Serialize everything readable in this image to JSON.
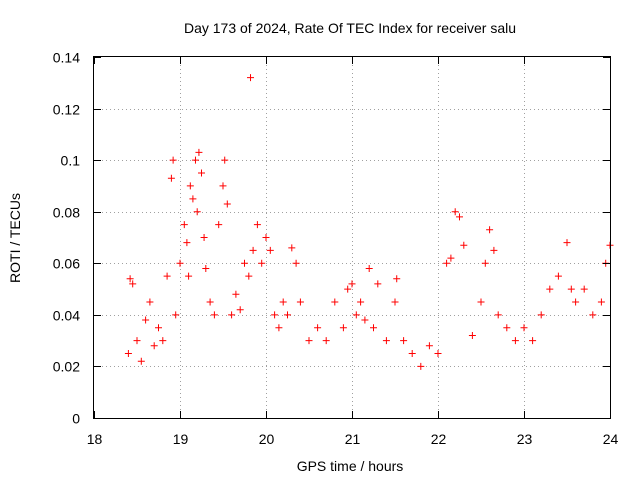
{
  "chart_data": {
    "type": "scatter",
    "title": "Day 173 of 2024, Rate Of TEC Index for receiver salu",
    "xlabel": "GPS time / hours",
    "ylabel": "ROTI / TECUs",
    "xlim": [
      18,
      24
    ],
    "ylim": [
      0,
      0.14
    ],
    "xticks": [
      "18",
      "19",
      "20",
      "21",
      "22",
      "23",
      "24"
    ],
    "yticks": [
      "0",
      "0.02",
      "0.04",
      "0.06",
      "0.08",
      "0.1",
      "0.12",
      "0.14"
    ],
    "grid": true,
    "marker": "+",
    "color": "#ff0000",
    "series": [
      {
        "name": "ROTI",
        "x": [
          18.4,
          18.42,
          18.45,
          18.5,
          18.55,
          18.6,
          18.65,
          18.7,
          18.75,
          18.8,
          18.85,
          18.9,
          18.92,
          18.95,
          19.0,
          19.05,
          19.08,
          19.1,
          19.12,
          19.15,
          19.18,
          19.2,
          19.22,
          19.25,
          19.28,
          19.3,
          19.35,
          19.4,
          19.45,
          19.5,
          19.52,
          19.55,
          19.6,
          19.65,
          19.7,
          19.75,
          19.8,
          19.82,
          19.85,
          19.9,
          19.95,
          20.0,
          20.05,
          20.1,
          20.15,
          20.2,
          20.25,
          20.3,
          20.35,
          20.4,
          20.5,
          20.6,
          20.7,
          20.8,
          20.9,
          20.95,
          21.0,
          21.05,
          21.1,
          21.15,
          21.2,
          21.25,
          21.3,
          21.4,
          21.5,
          21.52,
          21.6,
          21.7,
          21.8,
          21.9,
          22.0,
          22.1,
          22.15,
          22.2,
          22.25,
          22.3,
          22.4,
          22.5,
          22.55,
          22.6,
          22.65,
          22.7,
          22.8,
          22.9,
          23.0,
          23.1,
          23.2,
          23.3,
          23.4,
          23.5,
          23.55,
          23.6,
          23.7,
          23.8,
          23.9,
          23.95,
          24.0
        ],
        "y": [
          0.025,
          0.054,
          0.052,
          0.03,
          0.022,
          0.038,
          0.045,
          0.028,
          0.035,
          0.03,
          0.055,
          0.093,
          0.1,
          0.04,
          0.06,
          0.075,
          0.068,
          0.055,
          0.09,
          0.085,
          0.1,
          0.08,
          0.103,
          0.095,
          0.07,
          0.058,
          0.045,
          0.04,
          0.075,
          0.09,
          0.1,
          0.083,
          0.04,
          0.048,
          0.042,
          0.06,
          0.055,
          0.132,
          0.065,
          0.075,
          0.06,
          0.07,
          0.065,
          0.04,
          0.035,
          0.045,
          0.04,
          0.066,
          0.06,
          0.045,
          0.03,
          0.035,
          0.03,
          0.045,
          0.035,
          0.05,
          0.052,
          0.04,
          0.045,
          0.038,
          0.058,
          0.035,
          0.052,
          0.03,
          0.045,
          0.054,
          0.03,
          0.025,
          0.02,
          0.028,
          0.025,
          0.06,
          0.062,
          0.08,
          0.078,
          0.067,
          0.032,
          0.045,
          0.06,
          0.073,
          0.065,
          0.04,
          0.035,
          0.03,
          0.035,
          0.03,
          0.04,
          0.05,
          0.055,
          0.068,
          0.05,
          0.045,
          0.05,
          0.04,
          0.045,
          0.06,
          0.067
        ]
      }
    ]
  }
}
